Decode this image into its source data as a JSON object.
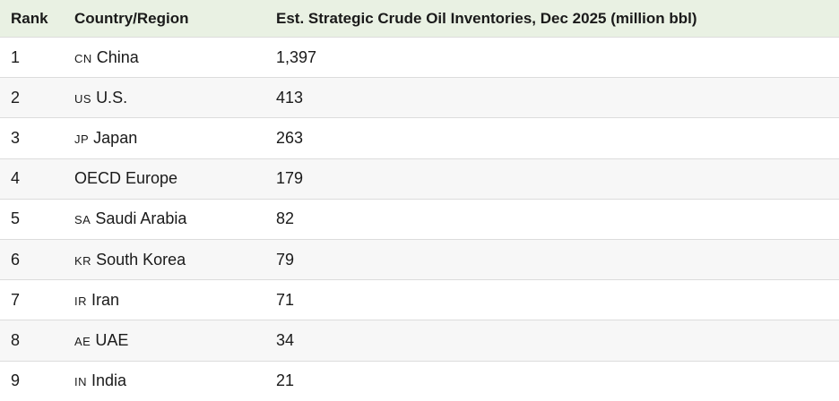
{
  "table": {
    "header": [
      "Rank",
      "Country/Region",
      "Est. Strategic Crude Oil Inventories, Dec 2025 (million bbl)"
    ],
    "rows": [
      {
        "rank": "1",
        "flag": "CN",
        "name": "China",
        "value": "1,397"
      },
      {
        "rank": "2",
        "flag": "US",
        "name": "U.S.",
        "value": "413"
      },
      {
        "rank": "3",
        "flag": "JP",
        "name": "Japan",
        "value": "263"
      },
      {
        "rank": "4",
        "name": "OECD Europe",
        "value": "179"
      },
      {
        "rank": "5",
        "flag": "SA",
        "name": "Saudi Arabia",
        "value": "82"
      },
      {
        "rank": "6",
        "flag": "KR",
        "name": "South Korea",
        "value": "79"
      },
      {
        "rank": "7",
        "flag": "IR",
        "name": "Iran",
        "value": "71"
      },
      {
        "rank": "8",
        "flag": "AE",
        "name": "UAE",
        "value": "34"
      },
      {
        "rank": "9",
        "flag": "IN",
        "name": "India",
        "value": "21"
      }
    ]
  }
}
